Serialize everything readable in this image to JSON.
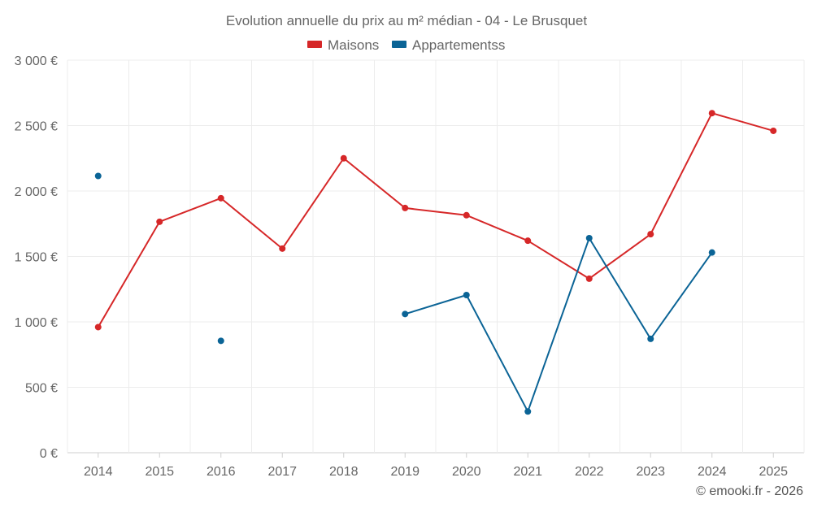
{
  "chart_data": {
    "type": "line",
    "title": "Evolution annuelle du prix au m² médian - 04 - Le Brusquet",
    "categories": [
      "2014",
      "2015",
      "2016",
      "2017",
      "2018",
      "2019",
      "2020",
      "2021",
      "2022",
      "2023",
      "2024",
      "2025"
    ],
    "ylim": [
      0,
      3000
    ],
    "yticks": [
      0,
      500,
      1000,
      1500,
      2000,
      2500,
      3000
    ],
    "ytick_labels": [
      "0 €",
      "500 €",
      "1 000 €",
      "1 500 €",
      "2 000 €",
      "2 500 €",
      "3 000 €"
    ],
    "xlabel": "",
    "ylabel": "",
    "grid": true,
    "legend_position": "top-center",
    "series": [
      {
        "name": "Maisons",
        "color": "#d62728",
        "values": [
          960,
          1765,
          1945,
          1560,
          2250,
          1870,
          1815,
          1620,
          1330,
          1670,
          2595,
          2460
        ]
      },
      {
        "name": "Appartementss",
        "color": "#0b6496",
        "values": [
          2115,
          null,
          855,
          null,
          null,
          1060,
          1205,
          315,
          1640,
          870,
          1530,
          null
        ]
      }
    ],
    "credit": "© emooki.fr - 2026"
  }
}
